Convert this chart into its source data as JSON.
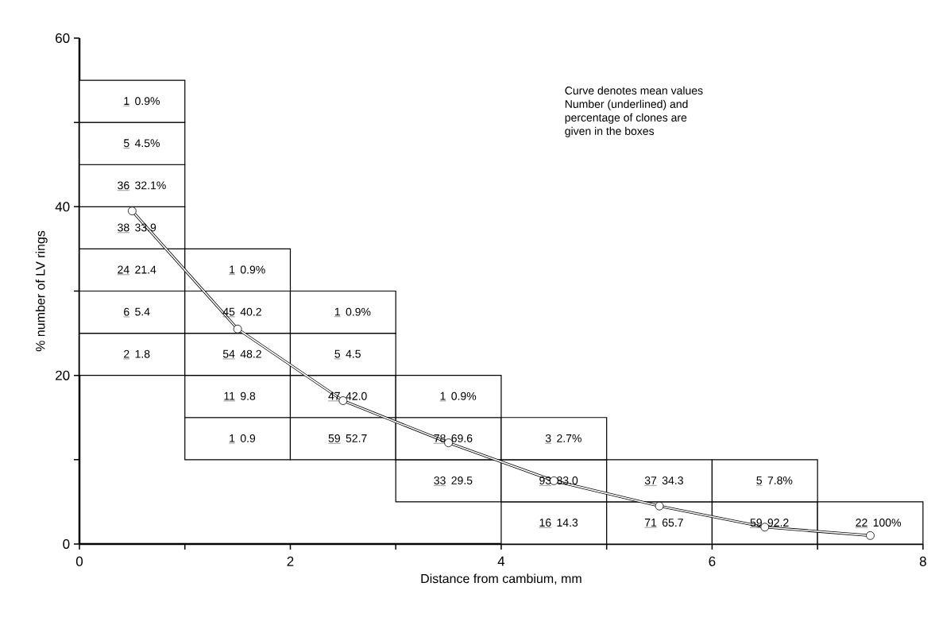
{
  "chart_data": {
    "type": "bar",
    "xlabel": "Distance from cambium, mm",
    "ylabel": "% number of LV rings",
    "series": [
      {
        "color": "#ffffff",
        "x": [
          0.5,
          1.5,
          2.5,
          3.5,
          4.5,
          5.5,
          6.5,
          7.5
        ],
        "base": [
          20,
          10,
          10,
          5,
          0,
          0,
          0,
          0
        ],
        "values": [
          5,
          5,
          5,
          5,
          5,
          5,
          5,
          5
        ]
      },
      {
        "color": "#ffffff",
        "x": [
          0.5,
          1.5,
          2.5,
          3.5,
          4.5,
          5.5,
          6.5
        ],
        "base": [
          25,
          15,
          15,
          10,
          5,
          5,
          5
        ],
        "values": [
          5,
          5,
          5,
          5,
          5,
          5,
          5
        ]
      },
      {
        "color": "#ffffff",
        "x": [
          0.5,
          1.5,
          2.5,
          3.5,
          4.5
        ],
        "base": [
          30,
          20,
          20,
          15,
          10
        ],
        "values": [
          5,
          5,
          5,
          5,
          5
        ]
      },
      {
        "color": "#ffffff",
        "x": [
          0.5,
          1.5,
          2.5
        ],
        "base": [
          35,
          25,
          25
        ],
        "values": [
          5,
          5,
          5
        ]
      },
      {
        "color": "#ffffff",
        "x": [
          0.5,
          1.5
        ],
        "base": [
          40,
          30
        ],
        "values": [
          5,
          5
        ]
      },
      {
        "color": "#ffffff",
        "x": [
          0.5
        ],
        "base": [
          45
        ],
        "values": [
          5
        ]
      },
      {
        "color": "#ffffff",
        "x": [
          0.5
        ],
        "base": [
          50
        ],
        "values": [
          5
        ]
      },
      {
        "type": "line",
        "color": "#000000",
        "x": [
          0.5,
          1.5,
          2.5,
          3.5,
          4.5,
          5.5,
          6.5,
          7.5
        ],
        "values": [
          39.5,
          25.5,
          17,
          12,
          7.5,
          4.5,
          2,
          1
        ]
      }
    ],
    "marker": "circle",
    "line_style": "solid",
    "xlim": [
      0,
      8
    ],
    "xticks": [
      0,
      {
        "value": 1,
        "label": null
      },
      2,
      {
        "value": 3,
        "label": null
      },
      4,
      {
        "value": 5,
        "label": null
      },
      6,
      {
        "value": 7,
        "label": null
      },
      8
    ],
    "ylim": [
      0,
      60
    ],
    "yticks": [
      0,
      {
        "value": 10,
        "label": null
      },
      20,
      {
        "value": 30,
        "label": null
      },
      40,
      {
        "value": 50,
        "label": null
      },
      60
    ],
    "annotations": [
      "Curve denotes mean values",
      "Number (underlined) and",
      "percentage of clones are",
      "given in the boxes",
      {
        "text": "2",
        "x": 0.5,
        "y": 25
      },
      {
        "text": "1.8",
        "x": 0.5,
        "y": 25
      },
      {
        "text": "6",
        "x": 0.5,
        "y": 30
      },
      {
        "text": "5.4",
        "x": 0.5,
        "y": 30
      },
      {
        "text": "24",
        "x": 0.5,
        "y": 35
      },
      {
        "text": "21.4",
        "x": 0.5,
        "y": 35
      },
      {
        "text": "38",
        "x": 0.5,
        "y": 40
      },
      {
        "text": "33.9",
        "x": 0.5,
        "y": 40
      },
      {
        "text": "36",
        "x": 0.5,
        "y": 45
      },
      {
        "text": "32.1%",
        "x": 0.5,
        "y": 45
      },
      {
        "text": "5",
        "x": 0.5,
        "y": 50
      },
      {
        "text": "4.5%",
        "x": 0.5,
        "y": 50
      },
      {
        "text": "1",
        "x": 0.5,
        "y": 55
      },
      {
        "text": "0.9%",
        "x": 0.5,
        "y": 55
      },
      {
        "text": "1",
        "x": 1.5,
        "y": 15
      },
      {
        "text": "0.9",
        "x": 1.5,
        "y": 15
      },
      {
        "text": "11",
        "x": 1.5,
        "y": 20
      },
      {
        "text": "9.8",
        "x": 1.5,
        "y": 20
      },
      {
        "text": "54",
        "x": 1.5,
        "y": 25
      },
      {
        "text": "48.2",
        "x": 1.5,
        "y": 25
      },
      {
        "text": "45",
        "x": 1.5,
        "y": 30
      },
      {
        "text": "40.2",
        "x": 1.5,
        "y": 30
      },
      {
        "text": "1",
        "x": 1.5,
        "y": 35
      },
      {
        "text": "0.9%",
        "x": 1.5,
        "y": 35
      },
      {
        "text": "59",
        "x": 2.5,
        "y": 15
      },
      {
        "text": "52.7",
        "x": 2.5,
        "y": 15
      },
      {
        "text": "47",
        "x": 2.5,
        "y": 20
      },
      {
        "text": "42.0",
        "x": 2.5,
        "y": 20
      },
      {
        "text": "5",
        "x": 2.5,
        "y": 25
      },
      {
        "text": "4.5",
        "x": 2.5,
        "y": 25
      },
      {
        "text": "1",
        "x": 2.5,
        "y": 30
      },
      {
        "text": "0.9%",
        "x": 2.5,
        "y": 30
      },
      {
        "text": "33",
        "x": 3.5,
        "y": 10
      },
      {
        "text": "29.5",
        "x": 3.5,
        "y": 10
      },
      {
        "text": "78",
        "x": 3.5,
        "y": 15
      },
      {
        "text": "69.6",
        "x": 3.5,
        "y": 15
      },
      {
        "text": "1",
        "x": 3.5,
        "y": 20
      },
      {
        "text": "0.9%",
        "x": 3.5,
        "y": 20
      },
      {
        "text": "16",
        "x": 4.5,
        "y": 5
      },
      {
        "text": "14.3",
        "x": 4.5,
        "y": 5
      },
      {
        "text": "93",
        "x": 4.5,
        "y": 10
      },
      {
        "text": "83.0",
        "x": 4.5,
        "y": 10
      },
      {
        "text": "3",
        "x": 4.5,
        "y": 15
      },
      {
        "text": "2.7%",
        "x": 4.5,
        "y": 15
      },
      {
        "text": "71",
        "x": 5.5,
        "y": 5
      },
      {
        "text": "65.7",
        "x": 5.5,
        "y": 5
      },
      {
        "text": "37",
        "x": 5.5,
        "y": 10
      },
      {
        "text": "34.3",
        "x": 5.5,
        "y": 10
      },
      {
        "text": "59",
        "x": 6.5,
        "y": 5
      },
      {
        "text": "92.2",
        "x": 6.5,
        "y": 5
      },
      {
        "text": "5",
        "x": 6.5,
        "y": 10
      },
      {
        "text": "7.8%",
        "x": 6.5,
        "y": 10
      },
      {
        "text": "22",
        "x": 7.5,
        "y": 5
      },
      {
        "text": "100%",
        "x": 7.5,
        "y": 5
      }
    ]
  }
}
